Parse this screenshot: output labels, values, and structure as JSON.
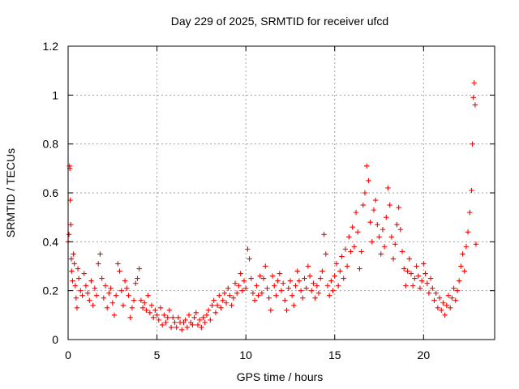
{
  "chart_data": {
    "type": "scatter",
    "title": "Day 229 of 2025, SRMTID for receiver ufcd",
    "xlabel": "GPS time / hours",
    "ylabel": "SRMTID / TECUs",
    "xlim": [
      0,
      24
    ],
    "ylim": [
      0,
      1.2
    ],
    "xticks": [
      0,
      5,
      10,
      15,
      20
    ],
    "xtick_labels": [
      "0",
      "5",
      "10",
      "15",
      "20"
    ],
    "yticks": [
      0,
      0.2,
      0.4,
      0.6,
      0.8,
      1.0,
      1.2
    ],
    "ytick_labels": [
      "0",
      "0.2",
      "0.4",
      "0.6",
      "0.8",
      "1",
      "1.2"
    ],
    "grid": true,
    "marker": "+",
    "color": "#ff0000",
    "series": [
      {
        "name": "SRMTID",
        "points": [
          [
            0.0,
            0.4
          ],
          [
            0.05,
            0.43
          ],
          [
            0.08,
            0.71
          ],
          [
            0.1,
            0.7
          ],
          [
            0.12,
            0.57
          ],
          [
            0.15,
            0.47
          ],
          [
            0.18,
            0.33
          ],
          [
            0.2,
            0.28
          ],
          [
            0.25,
            0.24
          ],
          [
            0.3,
            0.35
          ],
          [
            0.35,
            0.31
          ],
          [
            0.4,
            0.22
          ],
          [
            0.45,
            0.17
          ],
          [
            0.5,
            0.13
          ],
          [
            0.55,
            0.29
          ],
          [
            0.6,
            0.25
          ],
          [
            0.7,
            0.2
          ],
          [
            0.8,
            0.18
          ],
          [
            0.9,
            0.27
          ],
          [
            1.0,
            0.22
          ],
          [
            1.1,
            0.19
          ],
          [
            1.2,
            0.16
          ],
          [
            1.3,
            0.24
          ],
          [
            1.4,
            0.14
          ],
          [
            1.5,
            0.21
          ],
          [
            1.6,
            0.18
          ],
          [
            1.7,
            0.31
          ],
          [
            1.8,
            0.35
          ],
          [
            1.9,
            0.25
          ],
          [
            2.0,
            0.17
          ],
          [
            2.1,
            0.22
          ],
          [
            2.2,
            0.13
          ],
          [
            2.3,
            0.19
          ],
          [
            2.4,
            0.21
          ],
          [
            2.5,
            0.15
          ],
          [
            2.6,
            0.1
          ],
          [
            2.7,
            0.18
          ],
          [
            2.8,
            0.31
          ],
          [
            2.9,
            0.28
          ],
          [
            3.0,
            0.2
          ],
          [
            3.1,
            0.14
          ],
          [
            3.2,
            0.24
          ],
          [
            3.3,
            0.21
          ],
          [
            3.4,
            0.18
          ],
          [
            3.5,
            0.09
          ],
          [
            3.6,
            0.13
          ],
          [
            3.7,
            0.16
          ],
          [
            3.8,
            0.23
          ],
          [
            3.9,
            0.25
          ],
          [
            4.0,
            0.29
          ],
          [
            4.1,
            0.16
          ],
          [
            4.2,
            0.13
          ],
          [
            4.3,
            0.15
          ],
          [
            4.4,
            0.12
          ],
          [
            4.5,
            0.18
          ],
          [
            4.6,
            0.11
          ],
          [
            4.7,
            0.14
          ],
          [
            4.8,
            0.09
          ],
          [
            4.9,
            0.12
          ],
          [
            5.0,
            0.1
          ],
          [
            5.1,
            0.08
          ],
          [
            5.2,
            0.13
          ],
          [
            5.3,
            0.06
          ],
          [
            5.4,
            0.1
          ],
          [
            5.5,
            0.07
          ],
          [
            5.6,
            0.09
          ],
          [
            5.7,
            0.12
          ],
          [
            5.8,
            0.05
          ],
          [
            5.9,
            0.09
          ],
          [
            6.0,
            0.07
          ],
          [
            6.1,
            0.05
          ],
          [
            6.2,
            0.09
          ],
          [
            6.3,
            0.07
          ],
          [
            6.4,
            0.04
          ],
          [
            6.5,
            0.07
          ],
          [
            6.6,
            0.08
          ],
          [
            6.7,
            0.05
          ],
          [
            6.8,
            0.1
          ],
          [
            6.9,
            0.07
          ],
          [
            7.0,
            0.06
          ],
          [
            7.1,
            0.09
          ],
          [
            7.2,
            0.11
          ],
          [
            7.3,
            0.06
          ],
          [
            7.4,
            0.08
          ],
          [
            7.5,
            0.05
          ],
          [
            7.6,
            0.09
          ],
          [
            7.7,
            0.07
          ],
          [
            7.8,
            0.1
          ],
          [
            7.9,
            0.12
          ],
          [
            8.0,
            0.08
          ],
          [
            8.1,
            0.14
          ],
          [
            8.2,
            0.16
          ],
          [
            8.3,
            0.11
          ],
          [
            8.4,
            0.14
          ],
          [
            8.5,
            0.18
          ],
          [
            8.6,
            0.13
          ],
          [
            8.7,
            0.16
          ],
          [
            8.8,
            0.19
          ],
          [
            8.9,
            0.15
          ],
          [
            9.0,
            0.21
          ],
          [
            9.1,
            0.18
          ],
          [
            9.2,
            0.14
          ],
          [
            9.3,
            0.17
          ],
          [
            9.4,
            0.23
          ],
          [
            9.5,
            0.19
          ],
          [
            9.6,
            0.22
          ],
          [
            9.7,
            0.27
          ],
          [
            9.8,
            0.2
          ],
          [
            9.9,
            0.24
          ],
          [
            10.0,
            0.21
          ],
          [
            10.1,
            0.37
          ],
          [
            10.2,
            0.33
          ],
          [
            10.3,
            0.25
          ],
          [
            10.4,
            0.19
          ],
          [
            10.5,
            0.16
          ],
          [
            10.6,
            0.22
          ],
          [
            10.7,
            0.18
          ],
          [
            10.8,
            0.26
          ],
          [
            10.9,
            0.19
          ],
          [
            11.0,
            0.25
          ],
          [
            11.1,
            0.3
          ],
          [
            11.2,
            0.21
          ],
          [
            11.3,
            0.17
          ],
          [
            11.4,
            0.12
          ],
          [
            11.5,
            0.26
          ],
          [
            11.6,
            0.22
          ],
          [
            11.7,
            0.18
          ],
          [
            11.8,
            0.24
          ],
          [
            11.9,
            0.27
          ],
          [
            12.0,
            0.2
          ],
          [
            12.1,
            0.23
          ],
          [
            12.2,
            0.16
          ],
          [
            12.3,
            0.12
          ],
          [
            12.4,
            0.21
          ],
          [
            12.5,
            0.24
          ],
          [
            12.6,
            0.18
          ],
          [
            12.7,
            0.14
          ],
          [
            12.8,
            0.22
          ],
          [
            12.9,
            0.28
          ],
          [
            13.0,
            0.24
          ],
          [
            13.1,
            0.2
          ],
          [
            13.2,
            0.17
          ],
          [
            13.3,
            0.25
          ],
          [
            13.4,
            0.21
          ],
          [
            13.5,
            0.3
          ],
          [
            13.6,
            0.26
          ],
          [
            13.7,
            0.2
          ],
          [
            13.8,
            0.23
          ],
          [
            13.9,
            0.17
          ],
          [
            14.0,
            0.22
          ],
          [
            14.1,
            0.19
          ],
          [
            14.2,
            0.25
          ],
          [
            14.3,
            0.28
          ],
          [
            14.4,
            0.43
          ],
          [
            14.5,
            0.35
          ],
          [
            14.6,
            0.22
          ],
          [
            14.7,
            0.18
          ],
          [
            14.8,
            0.24
          ],
          [
            14.9,
            0.2
          ],
          [
            15.0,
            0.26
          ],
          [
            15.1,
            0.31
          ],
          [
            15.2,
            0.22
          ],
          [
            15.3,
            0.28
          ],
          [
            15.4,
            0.34
          ],
          [
            15.5,
            0.25
          ],
          [
            15.6,
            0.37
          ],
          [
            15.7,
            0.3
          ],
          [
            15.8,
            0.42
          ],
          [
            15.9,
            0.36
          ],
          [
            16.0,
            0.46
          ],
          [
            16.1,
            0.38
          ],
          [
            16.2,
            0.52
          ],
          [
            16.3,
            0.44
          ],
          [
            16.4,
            0.29
          ],
          [
            16.5,
            0.36
          ],
          [
            16.6,
            0.55
          ],
          [
            16.7,
            0.6
          ],
          [
            16.8,
            0.71
          ],
          [
            16.9,
            0.65
          ],
          [
            17.0,
            0.48
          ],
          [
            17.1,
            0.4
          ],
          [
            17.2,
            0.53
          ],
          [
            17.3,
            0.57
          ],
          [
            17.4,
            0.47
          ],
          [
            17.5,
            0.42
          ],
          [
            17.6,
            0.35
          ],
          [
            17.7,
            0.45
          ],
          [
            17.8,
            0.38
          ],
          [
            17.9,
            0.5
          ],
          [
            18.0,
            0.62
          ],
          [
            18.1,
            0.55
          ],
          [
            18.2,
            0.42
          ],
          [
            18.3,
            0.33
          ],
          [
            18.4,
            0.39
          ],
          [
            18.5,
            0.47
          ],
          [
            18.6,
            0.54
          ],
          [
            18.7,
            0.45
          ],
          [
            18.8,
            0.36
          ],
          [
            18.9,
            0.29
          ],
          [
            19.0,
            0.22
          ],
          [
            19.1,
            0.28
          ],
          [
            19.2,
            0.33
          ],
          [
            19.3,
            0.27
          ],
          [
            19.4,
            0.22
          ],
          [
            19.5,
            0.25
          ],
          [
            19.6,
            0.3
          ],
          [
            19.7,
            0.26
          ],
          [
            19.8,
            0.21
          ],
          [
            19.9,
            0.24
          ],
          [
            20.0,
            0.31
          ],
          [
            20.1,
            0.27
          ],
          [
            20.2,
            0.23
          ],
          [
            20.3,
            0.19
          ],
          [
            20.4,
            0.25
          ],
          [
            20.5,
            0.21
          ],
          [
            20.6,
            0.16
          ],
          [
            20.7,
            0.19
          ],
          [
            20.8,
            0.13
          ],
          [
            20.9,
            0.17
          ],
          [
            21.0,
            0.12
          ],
          [
            21.1,
            0.15
          ],
          [
            21.2,
            0.1
          ],
          [
            21.3,
            0.14
          ],
          [
            21.4,
            0.18
          ],
          [
            21.5,
            0.13
          ],
          [
            21.6,
            0.17
          ],
          [
            21.7,
            0.21
          ],
          [
            21.8,
            0.16
          ],
          [
            21.9,
            0.2
          ],
          [
            22.0,
            0.24
          ],
          [
            22.1,
            0.3
          ],
          [
            22.2,
            0.35
          ],
          [
            22.3,
            0.28
          ],
          [
            22.4,
            0.38
          ],
          [
            22.5,
            0.44
          ],
          [
            22.6,
            0.52
          ],
          [
            22.7,
            0.61
          ],
          [
            22.75,
            0.8
          ],
          [
            22.8,
            0.99
          ],
          [
            22.85,
            1.05
          ],
          [
            22.9,
            0.96
          ],
          [
            22.95,
            0.39
          ]
        ]
      }
    ]
  }
}
